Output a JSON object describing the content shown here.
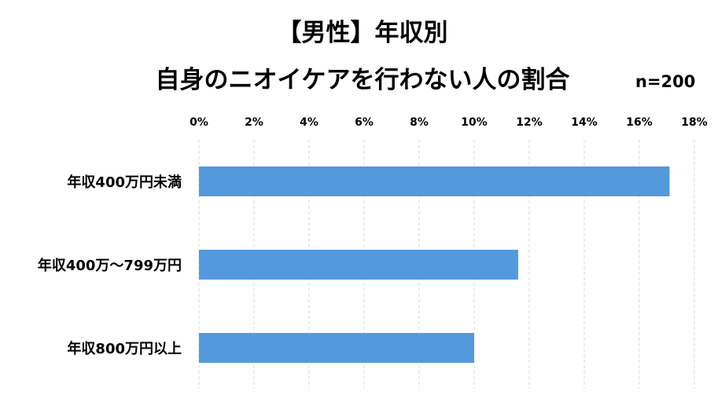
{
  "chart_data": {
    "type": "bar",
    "orientation": "horizontal",
    "title": "【男性】年収別",
    "subtitle": "自身のニオイケアを行わない人の割合",
    "annotation": "n=200",
    "categories": [
      "年収400万円未満",
      "年収400万～799万円",
      "年収800万円以上"
    ],
    "values": [
      17.1,
      11.6,
      10.0
    ],
    "unit": "%",
    "xlim": [
      0,
      18
    ],
    "xticks": [
      0,
      2,
      4,
      6,
      8,
      10,
      12,
      14,
      16,
      18
    ],
    "tick_labels": [
      "0%",
      "2%",
      "4%",
      "6%",
      "8%",
      "10%",
      "12%",
      "14%",
      "16%",
      "18%"
    ],
    "xlabel": "",
    "ylabel": "",
    "grid": true,
    "axis_position": "top",
    "legend": "none",
    "bar_color": "#5599DD",
    "grid_color": "#D9D9D9"
  }
}
